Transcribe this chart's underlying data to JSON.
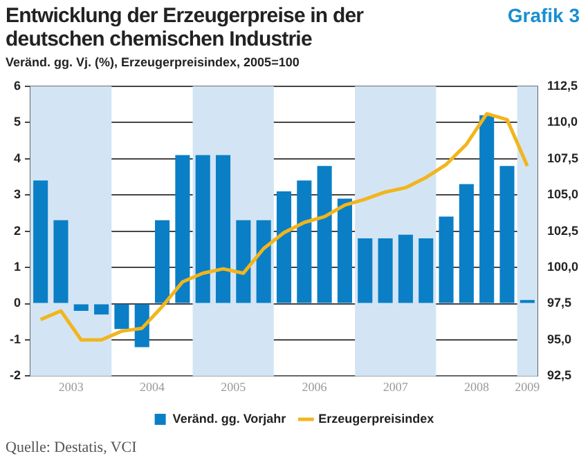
{
  "chart_data": {
    "type": "bar",
    "title": "Entwicklung der Erzeugerpreise in der deutschen chemischen Industrie",
    "subtitle": "Veränd. gg. Vj. (%), Erzeugerpreisindex, 2005=100",
    "annotations": [
      "Grafik 3",
      "Quelle: Destatis, VCI"
    ],
    "x": [
      2003.125,
      2003.375,
      2003.625,
      2003.875,
      2004.125,
      2004.375,
      2004.625,
      2004.875,
      2005.125,
      2005.375,
      2005.625,
      2005.875,
      2006.125,
      2006.375,
      2006.625,
      2006.875,
      2007.125,
      2007.375,
      2007.625,
      2007.875,
      2008.125,
      2008.375,
      2008.625,
      2008.875,
      2009.125
    ],
    "series": [
      {
        "name": "Veränd. gg. Vorjahr",
        "color": "#0a7fc6",
        "values": [
          3.4,
          2.3,
          -0.2,
          -0.3,
          -0.7,
          -1.2,
          2.3,
          4.1,
          4.1,
          4.1,
          2.3,
          2.3,
          3.1,
          3.4,
          3.8,
          2.9,
          1.8,
          1.8,
          1.9,
          1.8,
          2.4,
          3.3,
          5.2,
          3.8,
          0.1
        ]
      },
      {
        "name": "Erzeugerpreisindex",
        "type": "line",
        "axis": "y2",
        "color": "#f2b51c",
        "values": [
          96.4,
          97.0,
          95.0,
          95.0,
          95.6,
          95.8,
          97.3,
          99.0,
          99.6,
          99.9,
          99.6,
          101.3,
          102.4,
          103.1,
          103.5,
          104.3,
          104.7,
          105.2,
          105.5,
          106.2,
          107.1,
          108.5,
          110.6,
          110.2,
          107.0
        ]
      }
    ],
    "xlim": [
      2003,
      2009.25
    ],
    "xticks": [
      {
        "value": 2003.5,
        "label": "2003"
      },
      {
        "value": 2004.5,
        "label": "2004"
      },
      {
        "value": 2005.5,
        "label": "2005"
      },
      {
        "value": 2006.5,
        "label": "2006"
      },
      {
        "value": 2007.5,
        "label": "2007"
      },
      {
        "value": 2008.5,
        "label": "2008"
      },
      {
        "value": 2009.125,
        "label": "2009"
      }
    ],
    "ylim": [
      -2,
      6
    ],
    "yticks": [
      -2,
      -1,
      0,
      1,
      2,
      3,
      4,
      5,
      6
    ],
    "y2lim": [
      92.5,
      112.5
    ],
    "y2ticks": [
      {
        "value": 92.5,
        "label": "92,5"
      },
      {
        "value": 95,
        "label": "95,0"
      },
      {
        "value": 97.5,
        "label": "97,5"
      },
      {
        "value": 100,
        "label": "100,0"
      },
      {
        "value": 102.5,
        "label": "102,5"
      },
      {
        "value": 105,
        "label": "105,0"
      },
      {
        "value": 107.5,
        "label": "107,5"
      },
      {
        "value": 110,
        "label": "110,0"
      },
      {
        "value": 112.5,
        "label": "112,5"
      }
    ],
    "bands": [
      {
        "axis": "x",
        "from": 2003,
        "to": 2004,
        "color": "#d3e5f4"
      },
      {
        "axis": "x",
        "from": 2005,
        "to": 2006,
        "color": "#d3e5f4"
      },
      {
        "axis": "x",
        "from": 2007,
        "to": 2008,
        "color": "#d3e5f4"
      },
      {
        "axis": "x",
        "from": 2009,
        "to": 2009.25,
        "color": "#d3e5f4"
      }
    ],
    "grid": "y",
    "legend": "bottom",
    "marker": "none",
    "line_style": "solid"
  }
}
